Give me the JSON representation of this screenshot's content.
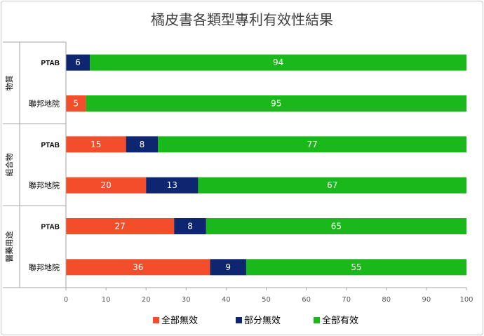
{
  "chart_data": {
    "type": "bar",
    "orientation": "horizontal",
    "stacked": true,
    "title": "橘皮書各類型專利有效性結果",
    "groups": [
      {
        "name": "物質",
        "categories": [
          "PTAB",
          "聯邦地院"
        ]
      },
      {
        "name": "組合物",
        "categories": [
          "PTAB",
          "聯邦地院"
        ]
      },
      {
        "name": "醫藥用途",
        "categories": [
          "PTAB",
          "聯邦地院"
        ]
      }
    ],
    "categories": [
      "PTAB",
      "聯邦地院",
      "PTAB",
      "聯邦地院",
      "PTAB",
      "聯邦地院"
    ],
    "series": [
      {
        "name": "全部無效",
        "color": "#f24e2c",
        "values": [
          0,
          5,
          15,
          20,
          27,
          36
        ]
      },
      {
        "name": "部分無效",
        "color": "#0e2670",
        "values": [
          6,
          0,
          8,
          13,
          8,
          9
        ]
      },
      {
        "name": "全部有效",
        "color": "#1bb81b",
        "values": [
          94,
          95,
          77,
          67,
          65,
          55
        ]
      }
    ],
    "xlim": [
      0,
      100
    ],
    "xticks": [
      0,
      10,
      20,
      30,
      40,
      50,
      60,
      70,
      80,
      90,
      100
    ],
    "grid": false,
    "legend": "bottom"
  }
}
